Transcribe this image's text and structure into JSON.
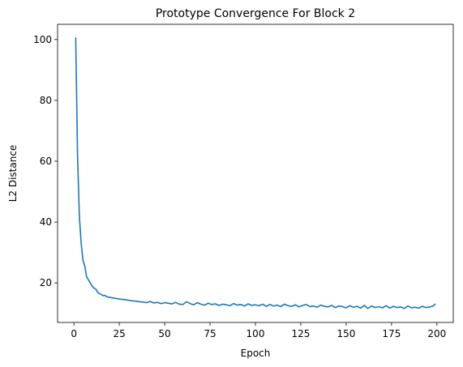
{
  "chart_data": {
    "type": "line",
    "title": "Prototype Convergence For Block 2",
    "xlabel": "Epoch",
    "ylabel": "L2 Distance",
    "xlim": [
      -9,
      209
    ],
    "ylim": [
      7,
      105
    ],
    "xticks": [
      0,
      25,
      50,
      75,
      100,
      125,
      150,
      175,
      200
    ],
    "yticks": [
      20,
      40,
      60,
      80,
      100
    ],
    "grid": false,
    "series": [
      {
        "color": "#1f77b4",
        "x": [
          1,
          2,
          3,
          4,
          5,
          6,
          7,
          8,
          9,
          10,
          11,
          12,
          13,
          14,
          15,
          16,
          17,
          18,
          19,
          20,
          22,
          24,
          26,
          28,
          30,
          32,
          34,
          36,
          38,
          40,
          42,
          44,
          46,
          48,
          50,
          52,
          54,
          56,
          58,
          60,
          62,
          64,
          66,
          68,
          70,
          72,
          74,
          76,
          78,
          80,
          82,
          84,
          86,
          88,
          90,
          92,
          94,
          96,
          98,
          100,
          102,
          104,
          106,
          108,
          110,
          112,
          114,
          116,
          118,
          120,
          122,
          124,
          126,
          128,
          130,
          132,
          134,
          136,
          138,
          140,
          142,
          144,
          146,
          148,
          150,
          152,
          154,
          156,
          158,
          160,
          162,
          164,
          166,
          168,
          170,
          172,
          174,
          176,
          178,
          180,
          182,
          184,
          186,
          188,
          190,
          192,
          194,
          196,
          198,
          199
        ],
        "y": [
          100.5,
          62,
          42,
          33,
          27.5,
          25.5,
          22,
          21,
          20,
          19,
          18.3,
          18,
          17,
          16.5,
          16.2,
          15.8,
          15.9,
          15.5,
          15.3,
          15.2,
          15.0,
          14.8,
          14.6,
          14.5,
          14.3,
          14.1,
          14.0,
          13.8,
          13.7,
          13.5,
          13.9,
          13.4,
          13.6,
          13.2,
          13.5,
          13.3,
          13.1,
          13.6,
          13.0,
          12.9,
          13.8,
          13.2,
          12.8,
          13.5,
          13.0,
          12.7,
          13.3,
          12.9,
          13.1,
          12.6,
          13.0,
          12.8,
          12.5,
          13.2,
          12.7,
          12.9,
          12.4,
          13.1,
          12.6,
          12.8,
          12.5,
          13.0,
          12.3,
          12.9,
          12.4,
          12.7,
          12.2,
          13.0,
          12.5,
          12.3,
          12.8,
          12.1,
          12.6,
          12.9,
          12.2,
          12.4,
          12.0,
          12.7,
          12.3,
          12.1,
          12.6,
          11.9,
          12.4,
          12.2,
          11.8,
          12.5,
          12.0,
          12.3,
          11.7,
          12.6,
          11.6,
          12.4,
          11.9,
          12.2,
          11.8,
          12.5,
          11.7,
          12.3,
          11.9,
          12.1,
          11.6,
          12.4,
          11.8,
          12.0,
          11.7,
          12.3,
          11.9,
          12.1,
          12.4,
          13.0
        ]
      }
    ]
  }
}
